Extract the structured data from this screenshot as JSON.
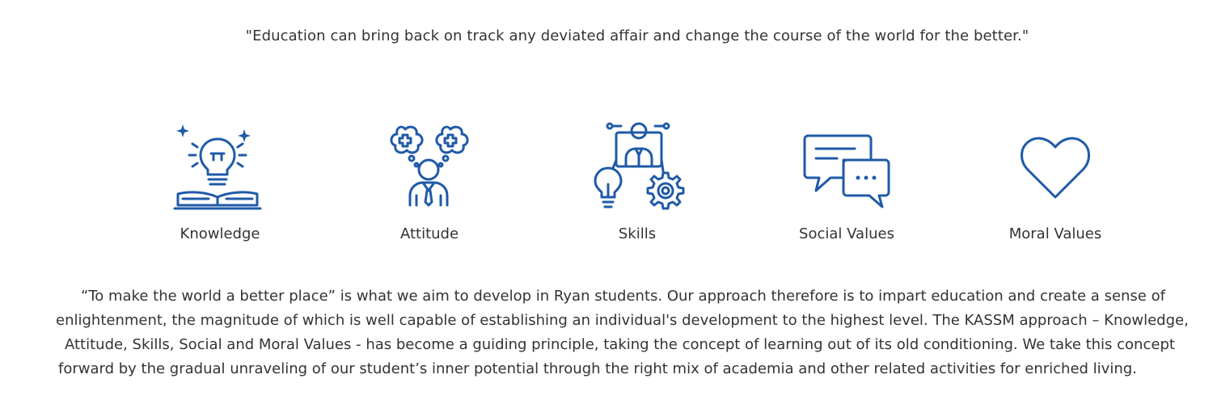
{
  "header": {
    "quote": "\"Education can bring back on track any deviated affair and change the course of the world for the better.\""
  },
  "pillars": [
    {
      "label": "Knowledge",
      "icon": "lightbulb-book-icon"
    },
    {
      "label": "Attitude",
      "icon": "person-thought-icon"
    },
    {
      "label": "Skills",
      "icon": "person-lightbulb-gear-icon"
    },
    {
      "label": "Social Values",
      "icon": "chat-bubbles-icon"
    },
    {
      "label": "Moral Values",
      "icon": "heart-icon"
    }
  ],
  "description": {
    "lines": [
      "“To make the world a better place” is what we aim to develop in Ryan students. Our approach therefore is to impart education and create a sense of",
      "enlightenment, the magnitude of which is well capable of establishing an individual's development to the highest level. The KASSM approach – Knowledge,",
      "Attitude, Skills, Social and Moral Values - has become a guiding principle, taking the concept of learning out of its old conditioning. We take this concept",
      "forward by the gradual unraveling of our student’s inner potential through the right mix of academia and other related activities for enriched living."
    ]
  },
  "colors": {
    "icon": "#1f5aa8",
    "text": "#333333",
    "background": "#ffffff"
  }
}
